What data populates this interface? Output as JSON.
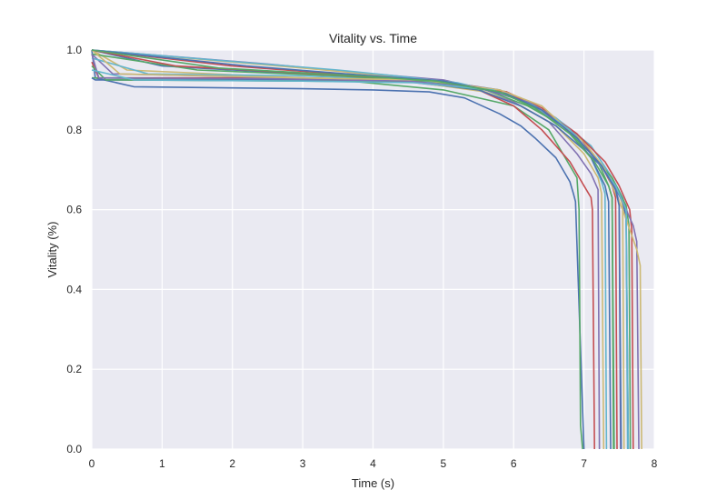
{
  "chart_data": {
    "type": "line",
    "title": "Vitality vs. Time",
    "xlabel": "Time (s)",
    "ylabel": "Vitality (%)",
    "xlim": [
      0,
      8
    ],
    "ylim": [
      0.0,
      1.0
    ],
    "xticks": [
      "0",
      "1",
      "2",
      "3",
      "4",
      "5",
      "6",
      "7",
      "8"
    ],
    "yticks": [
      "0.0",
      "0.2",
      "0.4",
      "0.6",
      "0.8",
      "1.0"
    ],
    "grid": true,
    "legend": "none",
    "background_color": "#eaeaf2",
    "palette": [
      "#4c72b0",
      "#55a868",
      "#c44e52",
      "#8172b2",
      "#ccb974",
      "#64b5cd"
    ],
    "series": [
      {
        "x": [
          0,
          0.05,
          0.6,
          1,
          2,
          3,
          4,
          4.8,
          5.3,
          5.8,
          6.1,
          6.3,
          6.6,
          6.8,
          6.85,
          6.88,
          7.0
        ],
        "y": [
          1.0,
          0.93,
          0.908,
          0.907,
          0.905,
          0.903,
          0.9,
          0.895,
          0.88,
          0.84,
          0.81,
          0.78,
          0.73,
          0.67,
          0.64,
          0.62,
          0.0
        ]
      },
      {
        "x": [
          0,
          3.5,
          5,
          6,
          6.5,
          6.9,
          6.93,
          6.95,
          6.98
        ],
        "y": [
          0.93,
          0.925,
          0.9,
          0.86,
          0.8,
          0.68,
          0.6,
          0.06,
          0.0
        ]
      },
      {
        "x": [
          0,
          0.1,
          3,
          4.5,
          5.5,
          6.0,
          6.4,
          6.8,
          7.0,
          7.1,
          7.12,
          7.15
        ],
        "y": [
          0.97,
          0.93,
          0.93,
          0.925,
          0.9,
          0.86,
          0.8,
          0.72,
          0.66,
          0.63,
          0.6,
          0.0
        ]
      },
      {
        "x": [
          0,
          0.3,
          3,
          4.5,
          5.5,
          6.0,
          6.5,
          6.9,
          7.1,
          7.2,
          7.22
        ],
        "y": [
          0.99,
          0.94,
          0.93,
          0.92,
          0.9,
          0.87,
          0.82,
          0.74,
          0.69,
          0.65,
          0.0
        ]
      },
      {
        "x": [
          0,
          0.5,
          3,
          4.5,
          5.6,
          6.1,
          6.6,
          7.0,
          7.2,
          7.25,
          7.28
        ],
        "y": [
          1.0,
          0.95,
          0.93,
          0.922,
          0.895,
          0.86,
          0.81,
          0.74,
          0.68,
          0.64,
          0.0
        ]
      },
      {
        "x": [
          0,
          0.8,
          3,
          4.6,
          5.7,
          6.2,
          6.7,
          7.1,
          7.25,
          7.3,
          7.32
        ],
        "y": [
          0.98,
          0.94,
          0.935,
          0.925,
          0.9,
          0.865,
          0.81,
          0.73,
          0.67,
          0.64,
          0.0
        ]
      },
      {
        "x": [
          0,
          1.0,
          3,
          4.7,
          5.8,
          6.3,
          6.8,
          7.1,
          7.3,
          7.35,
          7.38
        ],
        "y": [
          1.0,
          0.96,
          0.94,
          0.928,
          0.9,
          0.86,
          0.8,
          0.73,
          0.66,
          0.62,
          0.0
        ]
      },
      {
        "x": [
          0,
          1.5,
          3.5,
          4.8,
          5.8,
          6.3,
          6.8,
          7.2,
          7.35,
          7.4,
          7.42
        ],
        "y": [
          0.99,
          0.95,
          0.935,
          0.922,
          0.895,
          0.86,
          0.8,
          0.72,
          0.66,
          0.63,
          0.0
        ]
      },
      {
        "x": [
          0,
          2.0,
          3.5,
          4.9,
          5.9,
          6.4,
          6.9,
          7.25,
          7.4,
          7.45,
          7.47
        ],
        "y": [
          1.0,
          0.96,
          0.94,
          0.925,
          0.895,
          0.855,
          0.79,
          0.71,
          0.66,
          0.63,
          0.0
        ]
      },
      {
        "x": [
          0,
          2.5,
          4,
          5.0,
          6.0,
          6.5,
          7.0,
          7.3,
          7.45,
          7.5,
          7.52
        ],
        "y": [
          1.0,
          0.965,
          0.94,
          0.925,
          0.885,
          0.84,
          0.77,
          0.7,
          0.65,
          0.62,
          0.0
        ]
      },
      {
        "x": [
          0,
          3.0,
          4.2,
          5.1,
          6.0,
          6.5,
          7.0,
          7.35,
          7.5,
          7.55,
          7.57
        ],
        "y": [
          1.0,
          0.955,
          0.935,
          0.92,
          0.885,
          0.84,
          0.77,
          0.69,
          0.64,
          0.61,
          0.0
        ]
      },
      {
        "x": [
          0,
          3.5,
          4.5,
          5.2,
          6.1,
          6.6,
          7.1,
          7.4,
          7.55,
          7.6,
          7.62
        ],
        "y": [
          1.0,
          0.95,
          0.932,
          0.918,
          0.88,
          0.83,
          0.76,
          0.68,
          0.63,
          0.6,
          0.0
        ]
      },
      {
        "x": [
          0,
          0.05,
          3,
          4.6,
          5.5,
          6.1,
          6.6,
          7.0,
          7.3,
          7.55,
          7.6,
          7.63
        ],
        "y": [
          0.93,
          0.925,
          0.925,
          0.92,
          0.9,
          0.86,
          0.81,
          0.75,
          0.7,
          0.62,
          0.58,
          0.0
        ]
      },
      {
        "x": [
          0,
          0.2,
          3,
          4.6,
          5.6,
          6.2,
          6.7,
          7.1,
          7.4,
          7.6,
          7.64,
          7.66
        ],
        "y": [
          0.96,
          0.925,
          0.922,
          0.92,
          0.9,
          0.86,
          0.81,
          0.74,
          0.68,
          0.61,
          0.56,
          0.0
        ]
      },
      {
        "x": [
          0,
          1.2,
          3.2,
          4.8,
          5.9,
          6.4,
          6.9,
          7.3,
          7.5,
          7.65,
          7.68,
          7.7
        ],
        "y": [
          1.0,
          0.96,
          0.94,
          0.925,
          0.895,
          0.85,
          0.79,
          0.72,
          0.66,
          0.6,
          0.55,
          0.0
        ]
      },
      {
        "x": [
          0,
          0.1,
          2.5,
          4.5,
          5.5,
          6.2,
          6.8,
          7.2,
          7.5,
          7.7,
          7.75,
          7.78
        ],
        "y": [
          0.99,
          0.93,
          0.928,
          0.922,
          0.905,
          0.87,
          0.8,
          0.72,
          0.64,
          0.56,
          0.52,
          0.0
        ]
      },
      {
        "x": [
          0,
          0.4,
          3,
          4.7,
          5.8,
          6.4,
          6.9,
          7.3,
          7.55,
          7.75,
          7.8,
          7.82
        ],
        "y": [
          1.0,
          0.94,
          0.93,
          0.925,
          0.9,
          0.86,
          0.78,
          0.7,
          0.6,
          0.5,
          0.46,
          0.0
        ]
      },
      {
        "x": [
          0,
          0.6,
          3,
          4.6,
          5.7,
          6.3,
          6.8,
          7.2,
          7.45,
          7.6,
          7.63
        ],
        "y": [
          0.95,
          0.925,
          0.922,
          0.918,
          0.9,
          0.86,
          0.8,
          0.72,
          0.66,
          0.6,
          0.0
        ]
      },
      {
        "x": [
          0,
          2.2,
          4,
          5.0,
          5.9,
          6.4,
          6.9,
          7.25,
          7.45,
          7.5,
          7.53
        ],
        "y": [
          1.0,
          0.96,
          0.935,
          0.922,
          0.89,
          0.85,
          0.78,
          0.71,
          0.65,
          0.61,
          0.0
        ]
      },
      {
        "x": [
          0,
          1.8,
          3.8,
          4.9,
          5.8,
          6.3,
          6.8,
          7.15,
          7.35,
          7.4,
          7.43
        ],
        "y": [
          1.0,
          0.955,
          0.935,
          0.922,
          0.895,
          0.855,
          0.79,
          0.72,
          0.66,
          0.63,
          0.0
        ]
      }
    ]
  }
}
